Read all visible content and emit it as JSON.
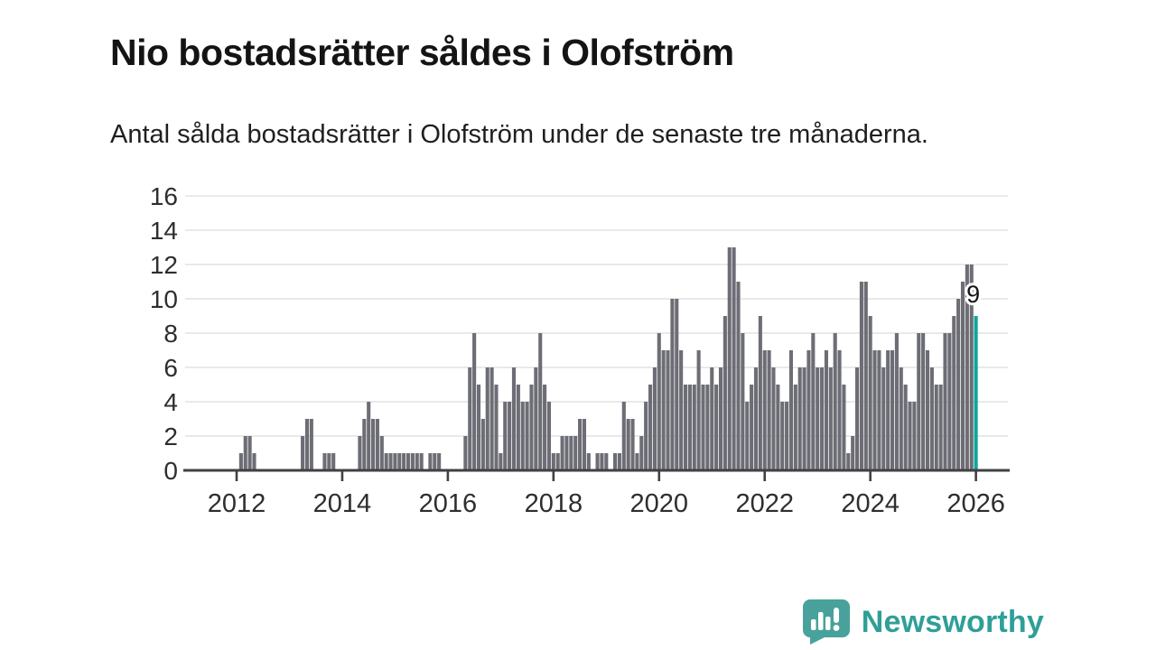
{
  "chart_data": {
    "type": "bar",
    "title": "Nio bostadsrätter såldes i Olofström",
    "subtitle": "Antal sålda bostadsrätter i Olofström under de senaste tre månaderna.",
    "frequency": "monthly",
    "x_start": "2012-01",
    "x_end": "2026-01",
    "values": [
      0,
      1,
      2,
      2,
      1,
      0,
      0,
      0,
      0,
      0,
      0,
      0,
      0,
      0,
      0,
      2,
      3,
      3,
      0,
      0,
      1,
      1,
      1,
      0,
      0,
      0,
      0,
      0,
      2,
      3,
      4,
      3,
      3,
      2,
      1,
      1,
      1,
      1,
      1,
      1,
      1,
      1,
      1,
      0,
      1,
      1,
      1,
      0,
      0,
      0,
      0,
      0,
      2,
      6,
      8,
      5,
      3,
      6,
      6,
      5,
      1,
      4,
      4,
      6,
      5,
      4,
      4,
      5,
      6,
      8,
      5,
      4,
      1,
      1,
      2,
      2,
      2,
      2,
      3,
      3,
      1,
      0,
      1,
      1,
      1,
      0,
      1,
      1,
      4,
      3,
      3,
      1,
      2,
      4,
      5,
      6,
      8,
      7,
      7,
      10,
      10,
      7,
      5,
      5,
      5,
      7,
      5,
      5,
      6,
      5,
      6,
      9,
      13,
      13,
      11,
      8,
      4,
      5,
      6,
      9,
      7,
      7,
      6,
      5,
      4,
      4,
      7,
      5,
      6,
      6,
      7,
      8,
      6,
      6,
      7,
      6,
      8,
      7,
      5,
      1,
      2,
      6,
      11,
      11,
      9,
      7,
      7,
      6,
      7,
      7,
      8,
      6,
      5,
      4,
      4,
      8,
      8,
      7,
      6,
      5,
      5,
      8,
      8,
      9,
      10,
      11,
      12,
      12,
      9
    ],
    "ylim": [
      0,
      16
    ],
    "yticks": [
      0,
      2,
      4,
      6,
      8,
      10,
      12,
      14,
      16
    ],
    "xtick_labels": [
      "2012",
      "2014",
      "2016",
      "2018",
      "2020",
      "2022",
      "2024",
      "2026"
    ],
    "grid": true,
    "legend": "none",
    "bar_color": "#6d6d76",
    "highlight_color": "#0ba79b",
    "highlight_last": true,
    "annotation": {
      "label": "9",
      "value": 9
    }
  },
  "logo": {
    "name": "Newsworthy",
    "color": "#2f9f98"
  },
  "colors": {
    "background": "#ffffff",
    "title": "#141414",
    "subtitle": "#1f1f1f",
    "grid": "#e2e2e2",
    "axis": "#414141",
    "tick_label": "#2e2e2e",
    "annotation_text": "#141414",
    "annotation_halo": "#ffffff",
    "logo_bubble": "#48a29b",
    "logo_glyph": "#ffffff"
  }
}
